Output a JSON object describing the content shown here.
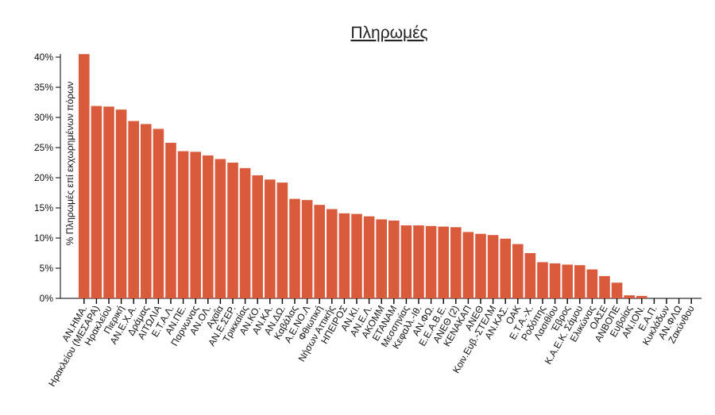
{
  "chart_data": {
    "type": "bar",
    "title": "Πληρωμές",
    "xlabel": "",
    "ylabel": "% Πληρωμές επί εκχωρημένων πόρων",
    "ylim": [
      0,
      40
    ],
    "yticks": [
      "0%",
      "5%",
      "10%",
      "15%",
      "20%",
      "25%",
      "30%",
      "35%",
      "40%"
    ],
    "grid": false,
    "bar_color": "#d95b3c",
    "categories": [
      "ΑΝ.ΗΜΑ.",
      "Ηρακλείου (ΜΕΣΑΡΑ)",
      "Ηρακλείου",
      "Πιερική",
      "ΑΝ.Ε.Χ.Α.",
      "Δράμας",
      "ΑΙΤΩΛΙΑ",
      "Ε.Τ.Α.Λ.",
      "ΑΝ.ΠΕ.",
      "Παρνωνας",
      "ΑΝ.ΟΛ.",
      "Αχαΐα",
      "ΑΝ.Ε.ΣΕΡ.",
      "Τρικκαίας",
      "ΑΝ.ΚΟ.",
      "ΑΝ.ΚΑ.",
      "ΑΝ.ΔΩ.",
      "Καβάλας",
      "Α.Ε.ΝΟ.Λ",
      "Φθιωτική",
      "Νήσων Αττικής",
      "ΗΠΕΙΡΟΣ",
      "ΑΝ.ΚΙ.",
      "ΑΝ.Ε.Λ.",
      "ΑΚΟΜΜ",
      "ΕΤΑΝΑΜ",
      "Μεσσηνίας",
      "Κεφαλλ.-Ιθ.",
      "ΑΝ.ΦΩ.",
      "Ε.Ε.Α.Β.Ε.",
      "ΑΝΕΘ (2)",
      "ΚΕΝΑΚΑΠ",
      "ΑΝΕΘ",
      "Κοιν.Ευβ.-ΣΤΕΛΜ",
      "ΑΝ.ΚΑΣ.",
      "ΟΑΚ",
      "Ε.Τ.Α.-Χ.",
      "Ροδόπης",
      "Λασιθίου",
      "Έβρος",
      "Κ.Α.Ε.Κ. Σάμου",
      "Ελικώνας",
      "ΟΑΣΕ",
      "ΑΝΒΟΠΕ",
      "Ευβοίας",
      "ΑΝ.ΙΟΝ.",
      "Ε.Α.Π.",
      "Κυκλάδων",
      "ΑΝ.ΦΛΩ",
      "Ζακύνθου"
    ],
    "values": [
      40.5,
      31.9,
      31.8,
      31.3,
      29.4,
      28.9,
      28.1,
      25.8,
      24.4,
      24.3,
      23.7,
      23.1,
      22.5,
      21.6,
      20.4,
      19.7,
      19.2,
      16.5,
      16.3,
      15.5,
      14.8,
      14.1,
      14.0,
      13.6,
      13.1,
      12.9,
      12.1,
      12.1,
      12.0,
      11.9,
      11.8,
      11.0,
      10.7,
      10.5,
      9.9,
      9.0,
      7.5,
      6.0,
      5.8,
      5.6,
      5.5,
      4.8,
      3.7,
      2.6,
      0.5,
      0.4,
      0,
      0,
      0,
      0
    ]
  }
}
